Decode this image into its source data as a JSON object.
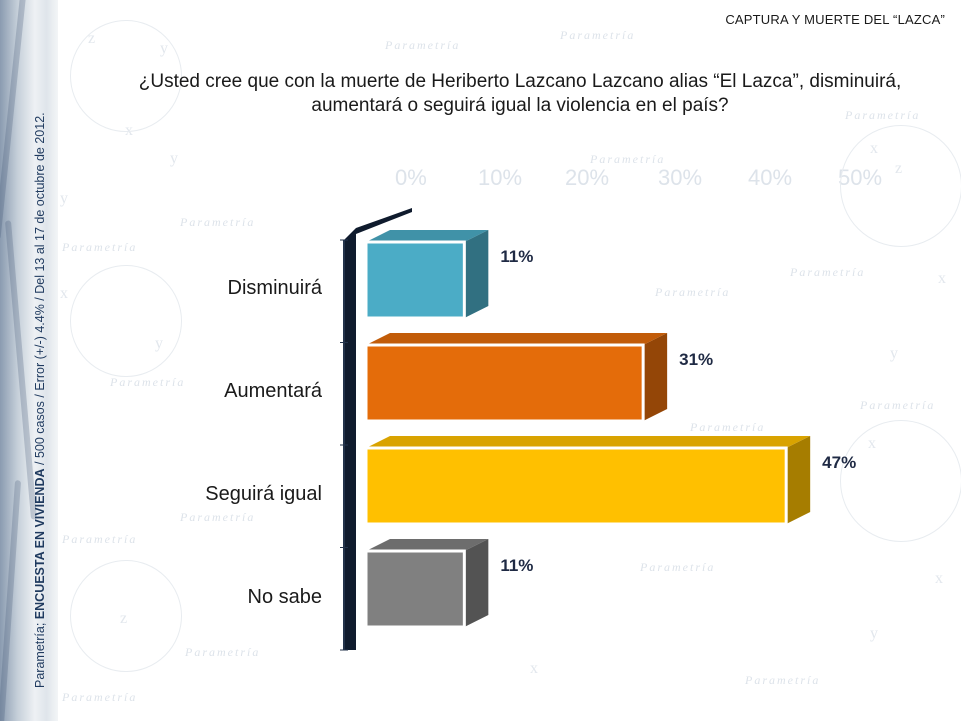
{
  "header": {
    "tag": "CAPTURA Y MUERTE DEL “LAZCA”"
  },
  "question": {
    "line1": "¿Usted cree que con la muerte de Heriberto Lazcano Lazcano alias “El Lazca”, disminuirá,",
    "line2": "aumentará o seguirá igual la violencia en el país?"
  },
  "side_note": {
    "source": "Parametría;",
    "survey": "ENCUESTA EN VIVIENDA",
    "details": "/ 500 casos / Error (+/-) 4.4% / Del 13 al 17 de octubre de 2012."
  },
  "watermark": {
    "text": "Parametría",
    "axis_ticks": [
      "0%",
      "10%",
      "20%",
      "30%",
      "40%",
      "50%"
    ]
  },
  "colors": {
    "disminuira": "#4bacc6",
    "aumentara": "#e46c0a",
    "seguira_igual": "#ffc000",
    "no_sabe": "#808080",
    "axis": "#0f1b2d"
  },
  "chart_data": {
    "type": "bar",
    "orientation": "horizontal",
    "categories": [
      "Disminuirá",
      "Aumentará",
      "Seguirá igual",
      "No sabe"
    ],
    "values": [
      11,
      31,
      47,
      11
    ],
    "value_labels": [
      "11%",
      "31%",
      "47%",
      "11%"
    ],
    "xlim": [
      0,
      50
    ],
    "grid": false,
    "legend": "none"
  }
}
